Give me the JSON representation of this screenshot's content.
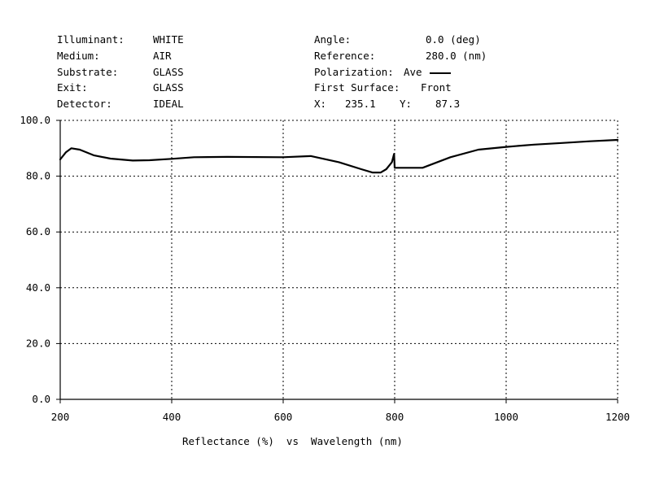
{
  "header": {
    "left": [
      {
        "label": "Illuminant:",
        "value": "WHITE"
      },
      {
        "label": "Medium:",
        "value": "AIR"
      },
      {
        "label": "Substrate:",
        "value": "GLASS"
      },
      {
        "label": "Exit:",
        "value": "GLASS"
      },
      {
        "label": "Detector:",
        "value": "IDEAL"
      }
    ],
    "right": [
      {
        "label": "Angle:",
        "value": "0.0 (deg)"
      },
      {
        "label": "Reference:",
        "value": "280.0 (nm)"
      },
      {
        "label": "Polarization:",
        "value": "Ave"
      },
      {
        "label": "First Surface:",
        "value": "Front"
      }
    ],
    "cursor": {
      "x_label": "X:",
      "x_value": "235.1",
      "y_label": "Y:",
      "y_value": "87.3"
    }
  },
  "chart_data": {
    "type": "line",
    "title": "",
    "xlabel": "Reflectance (%)  vs  Wavelength (nm)",
    "ylabel": "",
    "xlim": [
      200,
      1200
    ],
    "ylim": [
      0,
      100
    ],
    "x_ticks": [
      200,
      400,
      600,
      800,
      1000,
      1200
    ],
    "y_ticks": [
      "0.0",
      "20.0",
      "40.0",
      "60.0",
      "80.0",
      "100.0"
    ],
    "grid": true,
    "series": [
      {
        "name": "Ave",
        "color": "#000000",
        "x": [
          200,
          210,
          220,
          235,
          260,
          290,
          330,
          360,
          400,
          440,
          500,
          600,
          650,
          700,
          740,
          760,
          775,
          785,
          795,
          799,
          800,
          820,
          850,
          900,
          950,
          1000,
          1050,
          1100,
          1150,
          1200
        ],
        "y": [
          86,
          88.5,
          90,
          89.5,
          87.5,
          86.3,
          85.6,
          85.7,
          86.2,
          86.8,
          86.9,
          86.8,
          87.2,
          85,
          82.5,
          81.3,
          81.3,
          82.5,
          85,
          88,
          83,
          83,
          83,
          86.8,
          89.5,
          90.5,
          91.3,
          91.9,
          92.5,
          93
        ]
      }
    ]
  }
}
